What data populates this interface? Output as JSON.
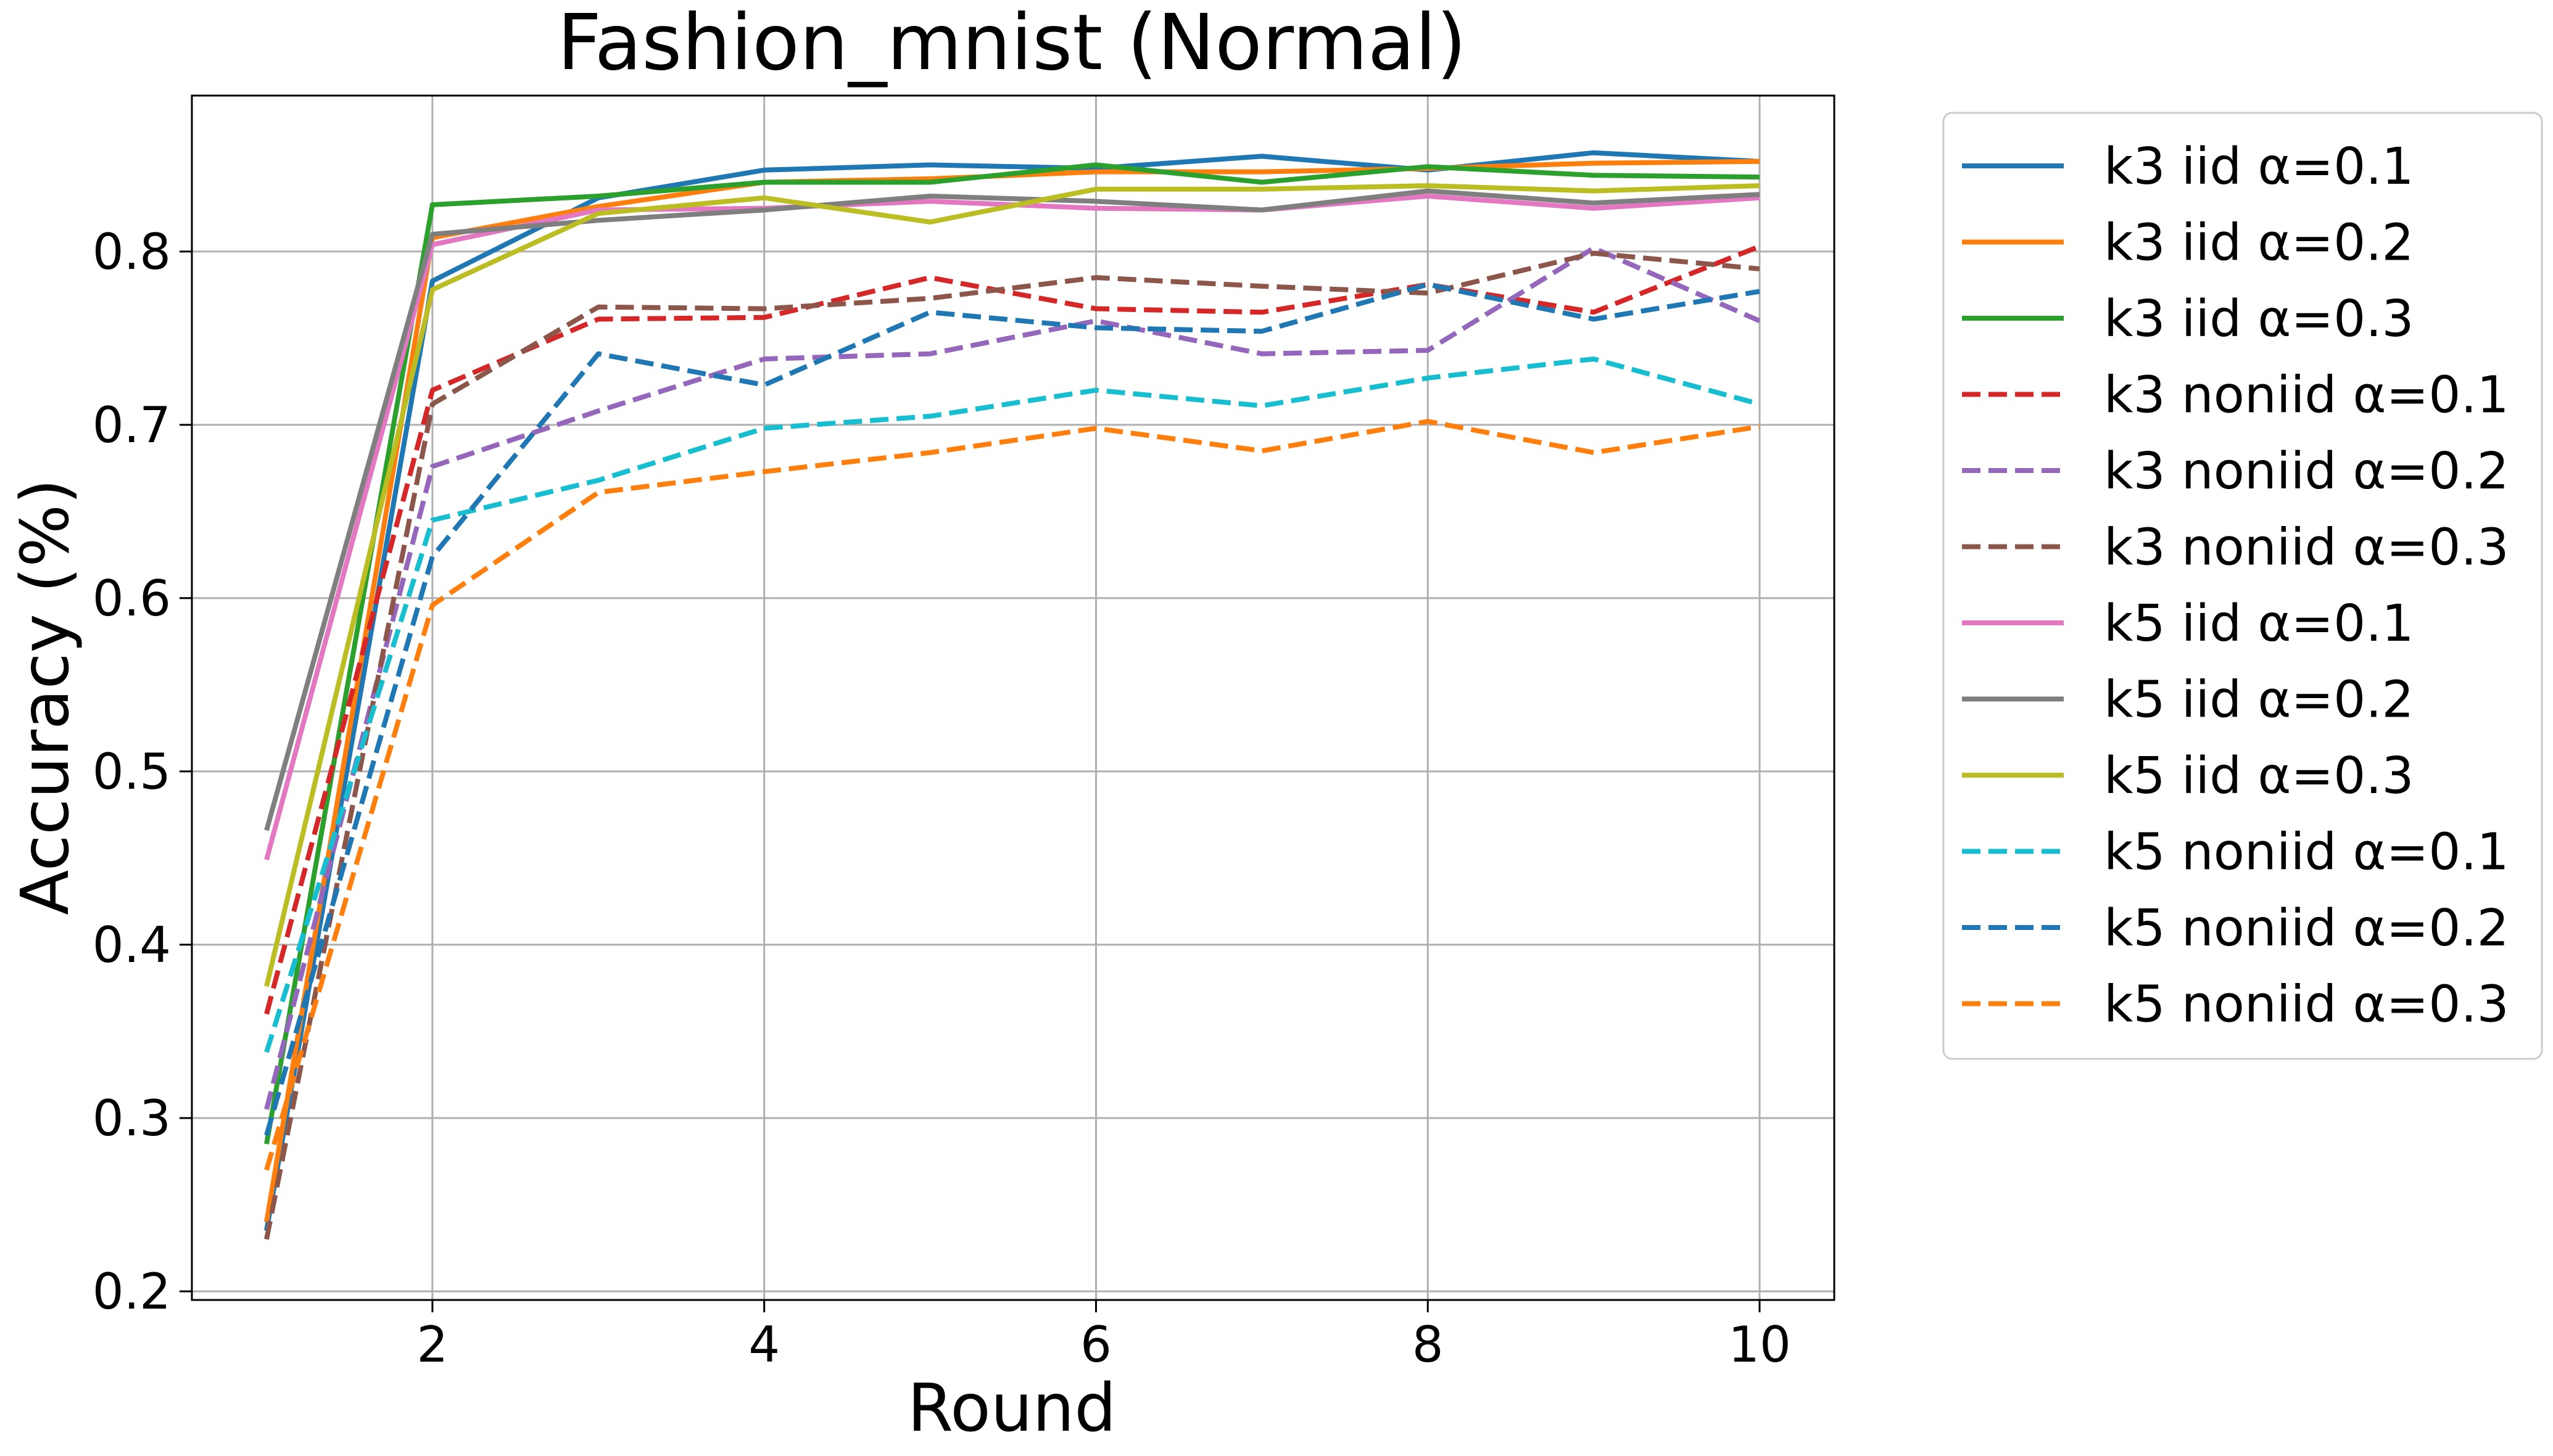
{
  "chart_data": {
    "type": "line",
    "title": "Fashion_mnist (Normal)",
    "xlabel": "Round",
    "ylabel": "Accuracy (%)",
    "xlim": [
      0.55,
      10.45
    ],
    "ylim": [
      0.195,
      0.89
    ],
    "xticks": [
      2,
      4,
      6,
      8,
      10
    ],
    "yticks": [
      0.2,
      0.3,
      0.4,
      0.5,
      0.6,
      0.7,
      0.8
    ],
    "grid": true,
    "legend_position": "outside-right-top",
    "x": [
      1,
      2,
      3,
      4,
      5,
      6,
      7,
      8,
      9,
      10
    ],
    "series": [
      {
        "name": "k3 iid α=0.1",
        "color": "#1f77b4",
        "style": "solid",
        "values": [
          0.235,
          0.783,
          0.831,
          0.847,
          0.85,
          0.848,
          0.855,
          0.847,
          0.857,
          0.852
        ]
      },
      {
        "name": "k3 iid α=0.2",
        "color": "#ff7f0e",
        "style": "solid",
        "values": [
          0.24,
          0.808,
          0.826,
          0.84,
          0.842,
          0.846,
          0.846,
          0.848,
          0.851,
          0.852
        ]
      },
      {
        "name": "k3 iid α=0.3",
        "color": "#2ca02c",
        "style": "solid",
        "values": [
          0.285,
          0.827,
          0.832,
          0.84,
          0.84,
          0.85,
          0.84,
          0.849,
          0.844,
          0.843
        ]
      },
      {
        "name": "k3 noniid α=0.1",
        "color": "#d62728",
        "style": "dashed",
        "values": [
          0.36,
          0.72,
          0.761,
          0.762,
          0.785,
          0.767,
          0.765,
          0.781,
          0.765,
          0.803
        ]
      },
      {
        "name": "k3 noniid α=0.2",
        "color": "#9467bd",
        "style": "dashed",
        "values": [
          0.305,
          0.676,
          0.708,
          0.738,
          0.741,
          0.76,
          0.741,
          0.743,
          0.802,
          0.76
        ]
      },
      {
        "name": "k3 noniid α=0.3",
        "color": "#8c564b",
        "style": "dashed",
        "values": [
          0.23,
          0.712,
          0.768,
          0.767,
          0.773,
          0.785,
          0.78,
          0.776,
          0.799,
          0.79
        ]
      },
      {
        "name": "k5 iid α=0.1",
        "color": "#e377c2",
        "style": "solid",
        "values": [
          0.449,
          0.804,
          0.824,
          0.825,
          0.829,
          0.825,
          0.824,
          0.832,
          0.825,
          0.831
        ]
      },
      {
        "name": "k5 iid α=0.2",
        "color": "#7f7f7f",
        "style": "solid",
        "values": [
          0.466,
          0.81,
          0.818,
          0.824,
          0.832,
          0.829,
          0.824,
          0.835,
          0.828,
          0.833
        ]
      },
      {
        "name": "k5 iid α=0.3",
        "color": "#bcbd22",
        "style": "solid",
        "values": [
          0.376,
          0.778,
          0.822,
          0.831,
          0.817,
          0.836,
          0.836,
          0.838,
          0.835,
          0.838
        ]
      },
      {
        "name": "k5 noniid α=0.1",
        "color": "#17becf",
        "style": "dashed",
        "values": [
          0.338,
          0.645,
          0.668,
          0.698,
          0.705,
          0.72,
          0.711,
          0.727,
          0.738,
          0.712
        ]
      },
      {
        "name": "k5 noniid α=0.2",
        "color": "#1f77b4",
        "style": "dashed",
        "values": [
          0.29,
          0.624,
          0.741,
          0.723,
          0.765,
          0.756,
          0.754,
          0.781,
          0.761,
          0.777
        ]
      },
      {
        "name": "k5 noniid α=0.3",
        "color": "#ff7f0e",
        "style": "dashed",
        "values": [
          0.27,
          0.596,
          0.661,
          0.673,
          0.684,
          0.698,
          0.685,
          0.702,
          0.684,
          0.699
        ]
      }
    ]
  }
}
